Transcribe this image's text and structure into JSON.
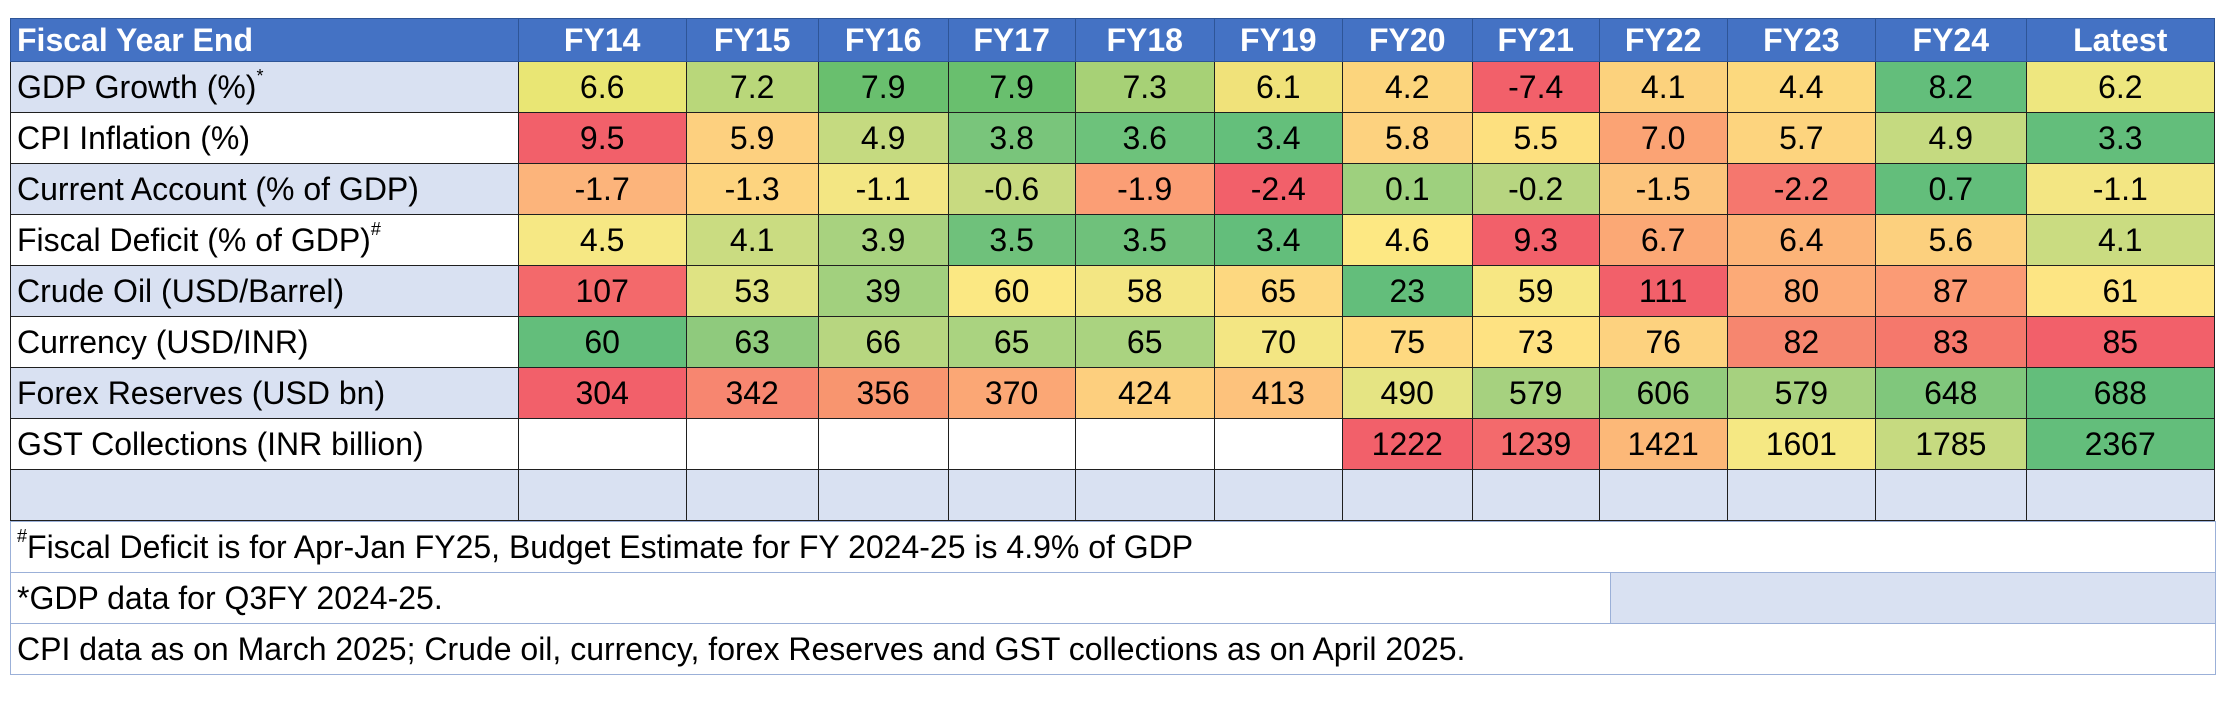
{
  "header": {
    "label": "Fiscal Year End",
    "years": [
      "FY14",
      "FY15",
      "FY16",
      "FY17",
      "FY18",
      "FY19",
      "FY20",
      "FY21",
      "FY22",
      "FY23",
      "FY24",
      "Latest"
    ]
  },
  "rows": [
    {
      "label": "GDP Growth (%)",
      "sup": "*",
      "bg": "#d9e1f2",
      "values": [
        "6.6",
        "7.2",
        "7.9",
        "7.9",
        "7.3",
        "6.1",
        "4.2",
        "-7.4",
        "4.1",
        "4.4",
        "8.2",
        "6.2"
      ],
      "colors": [
        "#e9e674",
        "#b9d77a",
        "#69bf6e",
        "#69bf6e",
        "#a7d176",
        "#f0e27a",
        "#fcd57d",
        "#f2606a",
        "#fcd27d",
        "#fcd97e",
        "#63be7b",
        "#eee77f"
      ]
    },
    {
      "label": "CPI Inflation (%)",
      "sup": "",
      "bg": "#ffffff",
      "values": [
        "9.5",
        "5.9",
        "4.9",
        "3.8",
        "3.6",
        "3.4",
        "5.8",
        "5.5",
        "7.0",
        "5.7",
        "4.9",
        "3.3"
      ],
      "colors": [
        "#f2606a",
        "#fdd07f",
        "#c5da80",
        "#79c57b",
        "#6dc27b",
        "#64bf7b",
        "#fdd27f",
        "#fde07f",
        "#fba374",
        "#fdd47e",
        "#c5da80",
        "#63be7b"
      ]
    },
    {
      "label": "Current Account (% of GDP)",
      "sup": "",
      "bg": "#d9e1f2",
      "values": [
        "-1.7",
        "-1.3",
        "-1.1",
        "-0.6",
        "-1.9",
        "-2.4",
        "0.1",
        "-0.2",
        "-1.5",
        "-2.2",
        "0.7",
        "-1.1"
      ],
      "colors": [
        "#fcb47b",
        "#fdd47f",
        "#f3e683",
        "#c8da80",
        "#fb9e75",
        "#f2606a",
        "#9ed07e",
        "#b7d580",
        "#fcc47c",
        "#f5776e",
        "#63be7b",
        "#f3e683"
      ]
    },
    {
      "label": "Fiscal Deficit (% of GDP)",
      "sup": "#",
      "bg": "#ffffff",
      "values": [
        "4.5",
        "4.1",
        "3.9",
        "3.5",
        "3.5",
        "3.4",
        "4.6",
        "9.3",
        "6.7",
        "6.4",
        "5.6",
        "4.1"
      ],
      "colors": [
        "#f6e884",
        "#cadc81",
        "#a8d27f",
        "#6fc17b",
        "#6fc17b",
        "#63be7b",
        "#fde883",
        "#f2606a",
        "#fba875",
        "#fcb478",
        "#fcd07e",
        "#cadc81"
      ]
    },
    {
      "label": "Crude Oil (USD/Barrel)",
      "sup": "",
      "bg": "#d9e1f2",
      "values": [
        "107",
        "53",
        "39",
        "60",
        "58",
        "65",
        "23",
        "59",
        "111",
        "80",
        "87",
        "61"
      ],
      "colors": [
        "#f3696b",
        "#dfe383",
        "#a2d07e",
        "#fbe883",
        "#f3e683",
        "#fdd880",
        "#63be7b",
        "#f7e783",
        "#f2606a",
        "#fcaa77",
        "#fb9b75",
        "#fde583"
      ]
    },
    {
      "label": "Currency (USD/INR)",
      "sup": "",
      "bg": "#ffffff",
      "values": [
        "60",
        "63",
        "66",
        "65",
        "65",
        "70",
        "75",
        "73",
        "76",
        "82",
        "83",
        "85"
      ],
      "colors": [
        "#63be7b",
        "#8fca7d",
        "#b7d680",
        "#aad380",
        "#aad380",
        "#f3e683",
        "#fed980",
        "#fee282",
        "#fdd27f",
        "#f6866f",
        "#f5786c",
        "#f2606a"
      ]
    },
    {
      "label": "Forex Reserves (USD bn)",
      "sup": "",
      "bg": "#d9e1f2",
      "values": [
        "304",
        "342",
        "356",
        "370",
        "424",
        "413",
        "490",
        "579",
        "606",
        "579",
        "648",
        "688"
      ],
      "colors": [
        "#f2606a",
        "#f78670",
        "#f8956f",
        "#fba775",
        "#fdcf7e",
        "#fdc27c",
        "#e5e483",
        "#a6d17f",
        "#93cc7d",
        "#a6d17f",
        "#80c77c",
        "#63be7b"
      ]
    },
    {
      "label": "GST Collections (INR billion)",
      "sup": "",
      "bg": "#ffffff",
      "values": [
        "",
        "",
        "",
        "",
        "",
        "",
        "1222",
        "1239",
        "1421",
        "1601",
        "1785",
        "2367"
      ],
      "colors": [
        "#ffffff",
        "#ffffff",
        "#ffffff",
        "#ffffff",
        "#ffffff",
        "#ffffff",
        "#f2606a",
        "#f36a6c",
        "#fcb878",
        "#f5e883",
        "#c6da80",
        "#63be7b"
      ]
    }
  ],
  "notes": {
    "note1_sup": "#",
    "note1_text": "Fiscal Deficit is for Apr-Jan FY25, Budget Estimate for FY 2024-25 is 4.9% of GDP",
    "note2": "*GDP data for Q3FY 2024-25.",
    "note3": "CPI data as on March 2025; Crude oil, currency, forex Reserves and GST collections as on April 2025."
  }
}
